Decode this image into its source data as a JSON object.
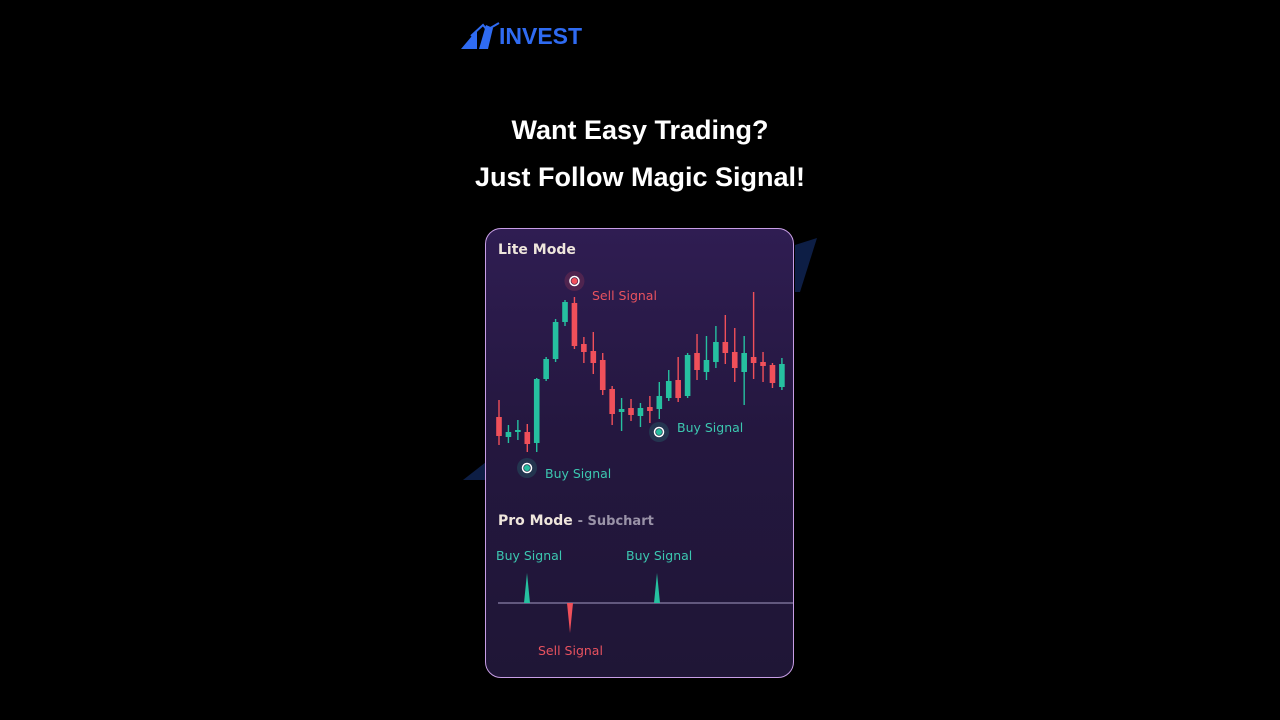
{
  "brand": {
    "logo_text": "INVEST",
    "color": "#2f6bf2"
  },
  "headline": {
    "line1": "Want Easy Trading?",
    "line2": "Just Follow Magic Signal!"
  },
  "card": {
    "lite_mode": {
      "title": "Lite Mode",
      "signals": [
        {
          "label": "Sell Signal",
          "type": "sell",
          "candle": 8
        },
        {
          "label": "Buy Signal",
          "type": "buy",
          "candle": 3
        },
        {
          "label": "Buy Signal",
          "type": "buy",
          "candle": 17
        }
      ]
    },
    "pro_mode": {
      "title": "Pro Mode",
      "subtitle": "- Subchart",
      "signals": [
        {
          "label": "Buy Signal",
          "type": "buy",
          "candle": 3
        },
        {
          "label": "Sell Signal",
          "type": "sell",
          "candle": 7
        },
        {
          "label": "Buy Signal",
          "type": "buy",
          "candle": 17
        }
      ]
    }
  },
  "colors": {
    "up": "#26c0a0",
    "down": "#f0505a",
    "border": "#c89ee6"
  },
  "chart_data": {
    "type": "candlestick",
    "candles": [
      [
        63,
        80,
        35,
        44
      ],
      [
        43,
        55,
        37,
        48
      ],
      [
        48,
        60,
        40,
        50
      ],
      [
        48,
        56,
        28,
        36
      ],
      [
        37,
        102,
        28,
        101
      ],
      [
        101,
        123,
        99,
        121
      ],
      [
        121,
        161,
        118,
        158
      ],
      [
        158,
        180,
        154,
        178
      ],
      [
        177,
        183,
        131,
        134
      ],
      [
        136,
        143,
        117,
        128
      ],
      [
        129,
        148,
        106,
        117
      ],
      [
        120,
        127,
        85,
        90
      ],
      [
        91,
        94,
        55,
        66
      ],
      [
        68,
        82,
        49,
        71
      ],
      [
        72,
        81,
        59,
        65
      ],
      [
        64,
        77,
        53,
        72
      ],
      [
        73,
        84,
        57,
        69
      ],
      [
        71,
        98,
        61,
        84
      ],
      [
        82,
        110,
        79,
        99
      ],
      [
        100,
        123,
        78,
        82
      ],
      [
        84,
        127,
        82,
        125
      ],
      [
        127,
        146,
        100,
        110
      ],
      [
        108,
        144,
        100,
        120
      ],
      [
        118,
        154,
        112,
        138
      ],
      [
        138,
        165,
        116,
        127
      ],
      [
        128,
        152,
        98,
        112
      ],
      [
        108,
        144,
        75,
        127
      ],
      [
        123,
        188,
        101,
        117
      ],
      [
        118,
        128,
        98,
        114
      ],
      [
        115,
        117,
        92,
        97
      ],
      [
        93,
        122,
        90,
        116
      ]
    ],
    "candle_format": [
      "open",
      "high",
      "low",
      "close"
    ]
  }
}
